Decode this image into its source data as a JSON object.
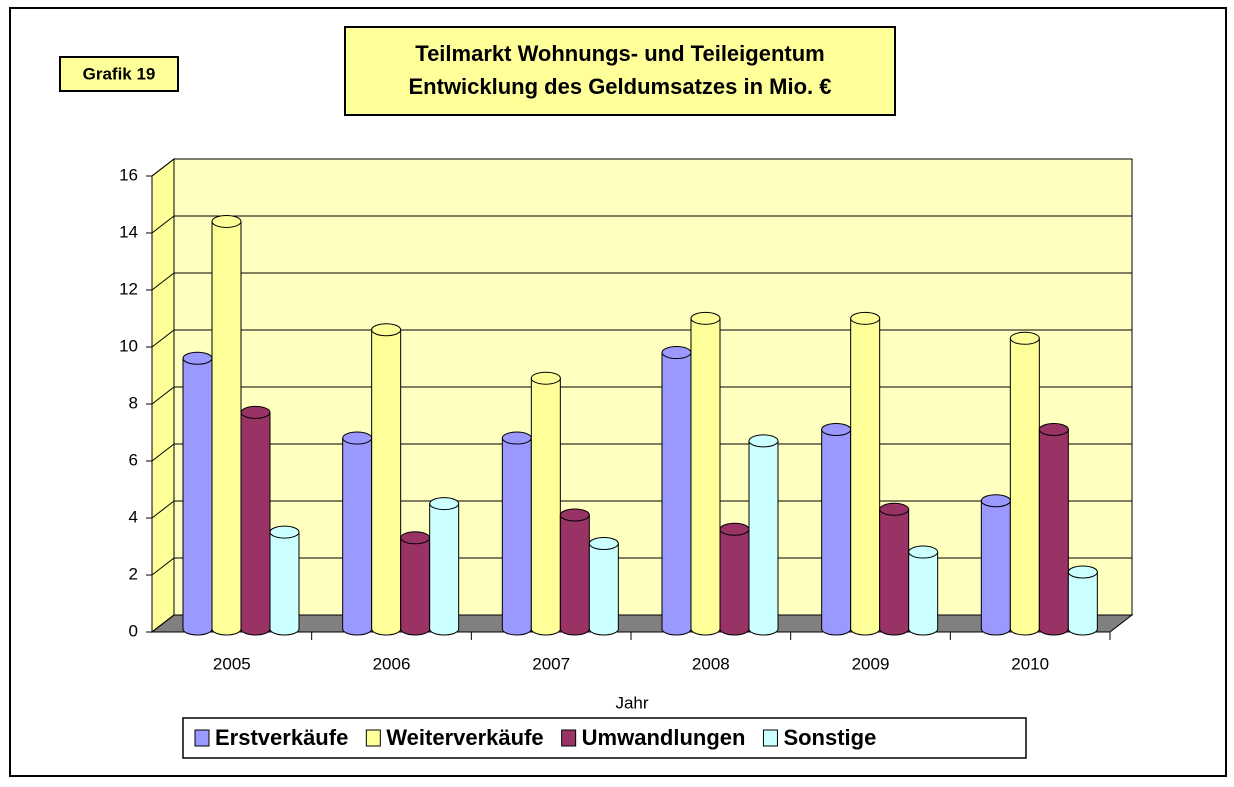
{
  "chart_data": {
    "type": "bar3d",
    "label": "Grafik 19",
    "title": "Teilmarkt Wohnungs- und Teileigentum",
    "subtitle": "Entwicklung des Geldumsatzes in Mio. €",
    "x_label": "Jahr",
    "categories": [
      "2005",
      "2006",
      "2007",
      "2008",
      "2009",
      "2010"
    ],
    "series": [
      {
        "name": "Erstverkäufe",
        "color": "#9999ff",
        "values": [
          9.5,
          6.7,
          6.7,
          9.7,
          7.0,
          4.5
        ]
      },
      {
        "name": "Weiterverkäufe",
        "color": "#ffff99",
        "values": [
          14.3,
          10.5,
          8.8,
          10.9,
          10.9,
          10.2
        ]
      },
      {
        "name": "Umwandlungen",
        "color": "#993366",
        "values": [
          7.6,
          3.2,
          4.0,
          3.5,
          4.2,
          7.0
        ]
      },
      {
        "name": "Sonstige",
        "color": "#ccffff",
        "values": [
          3.4,
          4.4,
          3.0,
          6.6,
          2.7,
          2.0
        ]
      }
    ],
    "ylim": [
      0,
      16
    ],
    "yticks": [
      0,
      2,
      4,
      6,
      8,
      10,
      12,
      14,
      16
    ],
    "grid": true
  }
}
